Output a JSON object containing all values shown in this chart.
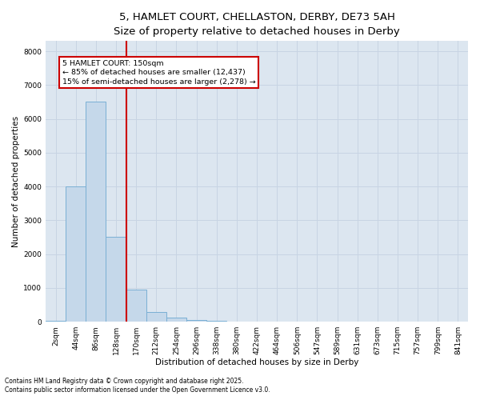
{
  "title_line1": "5, HAMLET COURT, CHELLASTON, DERBY, DE73 5AH",
  "title_line2": "Size of property relative to detached houses in Derby",
  "xlabel": "Distribution of detached houses by size in Derby",
  "ylabel": "Number of detached properties",
  "categories": [
    "2sqm",
    "44sqm",
    "86sqm",
    "128sqm",
    "170sqm",
    "212sqm",
    "254sqm",
    "296sqm",
    "338sqm",
    "380sqm",
    "422sqm",
    "464sqm",
    "506sqm",
    "547sqm",
    "589sqm",
    "631sqm",
    "673sqm",
    "715sqm",
    "757sqm",
    "799sqm",
    "841sqm"
  ],
  "bar_values": [
    30,
    4000,
    6500,
    2500,
    950,
    290,
    120,
    45,
    15,
    8,
    4,
    2,
    1,
    0,
    0,
    0,
    0,
    0,
    0,
    0,
    0
  ],
  "bar_color": "#c5d8ea",
  "bar_edge_color": "#7aafd4",
  "vline_color": "#cc0000",
  "vline_position": 3.5,
  "annotation_text_line1": "5 HAMLET COURT: 150sqm",
  "annotation_text_line2": "← 85% of detached houses are smaller (12,437)",
  "annotation_text_line3": "15% of semi-detached houses are larger (2,278) →",
  "annotation_box_color": "#cc0000",
  "annotation_box_bg": "#ffffff",
  "ylim": [
    0,
    8300
  ],
  "yticks": [
    0,
    1000,
    2000,
    3000,
    4000,
    5000,
    6000,
    7000,
    8000
  ],
  "grid_color": "#c8d4e3",
  "bg_color": "#dce6f0",
  "footnote1": "Contains HM Land Registry data © Crown copyright and database right 2025.",
  "footnote2": "Contains public sector information licensed under the Open Government Licence v3.0.",
  "title_fontsize": 9.5,
  "subtitle_fontsize": 8.5,
  "axis_label_fontsize": 7.5,
  "tick_fontsize": 6.5,
  "annotation_fontsize": 6.8,
  "footnote_fontsize": 5.5
}
